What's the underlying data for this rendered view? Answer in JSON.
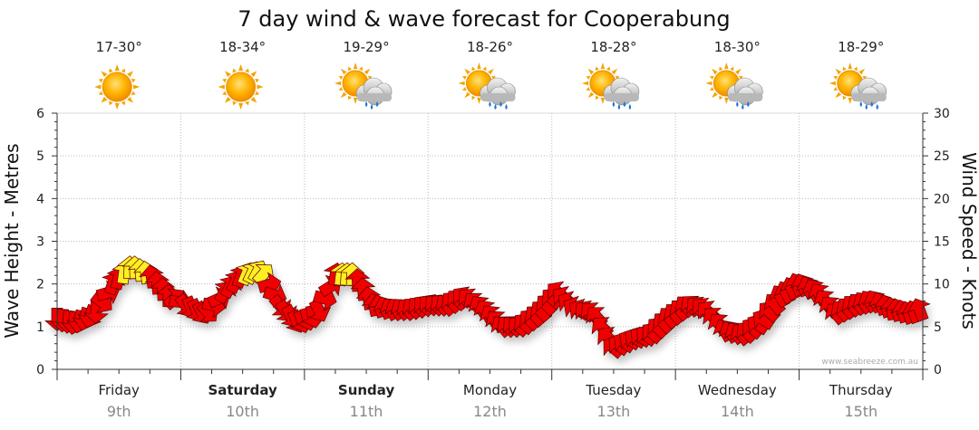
{
  "chart_data": {
    "type": "line",
    "title": "7 day wind & wave forecast for Cooperabung",
    "ylabel_left": "Wave Height - Metres",
    "ylabel_right": "Wind Speed - Knots",
    "ylim_left": [
      0,
      6
    ],
    "ylim_right": [
      0,
      30
    ],
    "yticks_left": [
      "0",
      "1",
      "2",
      "3",
      "4",
      "5",
      "6"
    ],
    "yticks_right": [
      "0",
      "5",
      "10",
      "15",
      "20",
      "25",
      "30"
    ],
    "grid": true,
    "credit": "www.seabreeze.com.au",
    "days": [
      {
        "name": "Friday",
        "date": "9th",
        "bold": false,
        "temp": "17-30°",
        "weather": "sun-icon"
      },
      {
        "name": "Saturday",
        "date": "10th",
        "bold": true,
        "temp": "18-34°",
        "weather": "sun-icon"
      },
      {
        "name": "Sunday",
        "date": "11th",
        "bold": true,
        "temp": "19-29°",
        "weather": "sun-cloud-showers-icon"
      },
      {
        "name": "Monday",
        "date": "12th",
        "bold": false,
        "temp": "18-26°",
        "weather": "sun-cloud-rain-icon"
      },
      {
        "name": "Tuesday",
        "date": "13th",
        "bold": false,
        "temp": "18-28°",
        "weather": "sun-cloud-rain-icon"
      },
      {
        "name": "Wednesday",
        "date": "14th",
        "bold": false,
        "temp": "18-30°",
        "weather": "sun-cloud-showers-icon"
      },
      {
        "name": "Thursday",
        "date": "15th",
        "bold": false,
        "temp": "18-29°",
        "weather": "sun-cloud-rain-icon"
      }
    ],
    "series": [
      {
        "x_days": [
          0.0,
          0.15,
          0.3,
          0.45,
          0.6,
          0.75,
          0.9,
          1.05,
          1.2,
          1.35,
          1.5,
          1.65,
          1.8,
          1.95,
          2.1,
          2.25,
          2.4,
          2.55,
          2.7,
          2.85,
          3.0,
          3.15,
          3.3,
          3.45,
          3.6,
          3.75,
          3.9,
          4.05,
          4.2,
          4.35,
          4.5,
          4.65,
          4.8,
          4.95,
          5.1,
          5.25,
          5.4,
          5.55,
          5.7,
          5.85,
          6.0,
          6.15,
          6.3,
          6.45,
          6.6,
          6.75,
          6.9,
          7.0
        ],
        "wind_knots": [
          6,
          5.5,
          6.5,
          10,
          12,
          11,
          8.5,
          7.5,
          6.5,
          9,
          11,
          11.5,
          7.5,
          5.5,
          6.5,
          11,
          11,
          7.5,
          7,
          7,
          7.5,
          7.5,
          8.5,
          7,
          5,
          5,
          6.5,
          9,
          7,
          6.5,
          2.5,
          3.5,
          4,
          6,
          7.5,
          7,
          4.5,
          4,
          5.5,
          8.5,
          10,
          9,
          6.5,
          7.5,
          8,
          7,
          6.5,
          7
        ],
        "wind_from_deg": [
          0,
          10,
          20,
          200,
          180,
          170,
          180,
          340,
          330,
          210,
          200,
          210,
          320,
          340,
          350,
          190,
          180,
          170,
          150,
          140,
          130,
          140,
          130,
          150,
          140,
          130,
          140,
          130,
          120,
          140,
          130,
          120,
          130,
          140,
          140,
          130,
          150,
          140,
          120,
          150,
          160,
          150,
          140,
          140,
          150,
          170,
          160,
          160
        ]
      }
    ],
    "annotations": "Arrows point in wind direction; yellow arrows mark stronger winds."
  }
}
